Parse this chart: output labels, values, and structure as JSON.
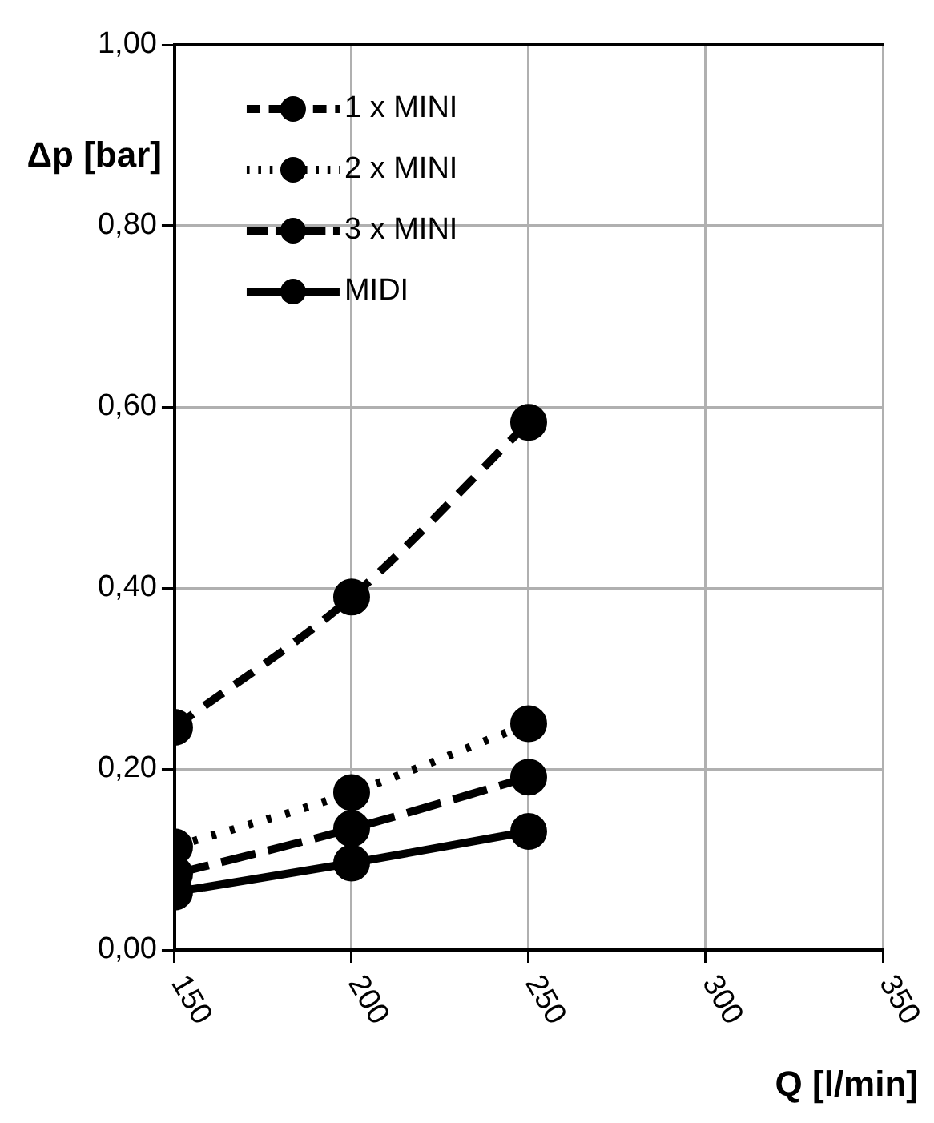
{
  "chart_data": {
    "type": "line",
    "xlabel": "Q [l/min]",
    "ylabel": "Δp [bar]",
    "x": [
      150,
      200,
      250
    ],
    "xlim": [
      150,
      350
    ],
    "xticks": [
      150,
      200,
      250,
      300,
      350
    ],
    "ylim": [
      0,
      1
    ],
    "yticks": [
      {
        "value": 0,
        "label": "0,00"
      },
      {
        "value": 0.2,
        "label": "0,20"
      },
      {
        "value": 0.4,
        "label": "0,40"
      },
      {
        "value": 0.6,
        "label": "0,60"
      },
      {
        "value": 0.8,
        "label": "0,80"
      },
      {
        "value": 1,
        "label": "1,00"
      }
    ],
    "grid": true,
    "legend": "top left",
    "marker": "circle",
    "series": [
      {
        "name": "1 x MINI",
        "color": "#000000",
        "line_style": "dashed",
        "values": [
          0.246,
          0.39,
          0.583
        ]
      },
      {
        "name": "2 x MINI",
        "color": "#000000",
        "line_style": "dotted",
        "values": [
          0.114,
          0.174,
          0.25
        ]
      },
      {
        "name": "3 x MINI",
        "color": "#000000",
        "line_style": "dashed",
        "values": [
          0.084,
          0.134,
          0.191
        ]
      },
      {
        "name": "MIDI",
        "color": "#000000",
        "line_style": "solid",
        "values": [
          0.064,
          0.096,
          0.131
        ]
      }
    ]
  }
}
